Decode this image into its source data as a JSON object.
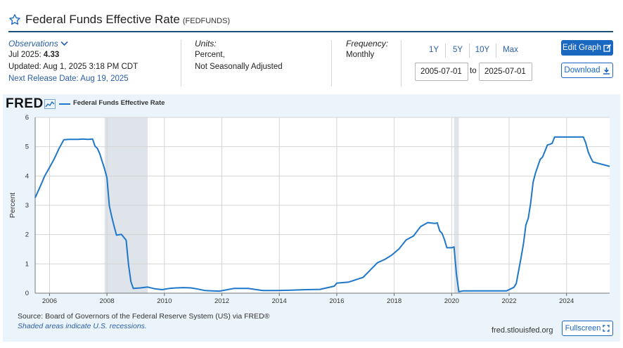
{
  "header": {
    "title": "Federal Funds Effective Rate",
    "series_id": "(FEDFUNDS)"
  },
  "observations": {
    "label": "Observations",
    "period": "Jul 2025:",
    "value": "4.33",
    "updated": "Updated: Aug 1, 2025 3:18 PM CDT",
    "next_release": "Next Release Date: Aug 19, 2025"
  },
  "units": {
    "label": "Units:",
    "line1": "Percent,",
    "line2": "Not Seasonally Adjusted"
  },
  "frequency": {
    "label": "Frequency:",
    "value": "Monthly"
  },
  "range": {
    "buttons": [
      "1Y",
      "5Y",
      "10Y",
      "Max"
    ],
    "start": "2005-07-01",
    "to": "to",
    "end": "2025-07-01"
  },
  "actions": {
    "edit": "Edit Graph",
    "download": "Download",
    "fullscreen": "Fullscreen"
  },
  "logo": "FRED",
  "footer": {
    "source": "Source: Board of Governors of the Federal Reserve System (US) via FRED®",
    "shaded": "Shaded areas indicate U.S. recessions.",
    "site": "fred.stlouisfed.org"
  },
  "colors": {
    "line": "#1f77c9",
    "recession": "#dfe4ea",
    "accent": "#1a67c0"
  },
  "icons": [
    "star-icon",
    "chevron-down-icon",
    "edit-icon",
    "download-icon",
    "fullscreen-icon",
    "fred-chart-icon"
  ],
  "chart_data": {
    "type": "line",
    "title": "",
    "xlabel": "",
    "ylabel": "Percent",
    "ylim": [
      0,
      6
    ],
    "xlim": [
      "2005-07",
      "2025-07"
    ],
    "yticks": [
      0,
      1,
      2,
      3,
      4,
      5,
      6
    ],
    "xticks": [
      "2006",
      "2008",
      "2010",
      "2012",
      "2014",
      "2016",
      "2018",
      "2020",
      "2022",
      "2024"
    ],
    "grid": true,
    "legend_position": "top-left",
    "recessions": [
      {
        "start": "2007-12",
        "end": "2009-06"
      },
      {
        "start": "2020-02",
        "end": "2020-04"
      }
    ],
    "series": [
      {
        "name": "Federal Funds Effective Rate",
        "x": [
          "2005-07",
          "2005-09",
          "2005-11",
          "2006-01",
          "2006-03",
          "2006-05",
          "2006-07",
          "2006-09",
          "2006-11",
          "2007-01",
          "2007-03",
          "2007-05",
          "2007-07",
          "2007-08",
          "2007-09",
          "2007-10",
          "2007-12",
          "2008-01",
          "2008-02",
          "2008-03",
          "2008-04",
          "2008-05",
          "2008-07",
          "2008-09",
          "2008-10",
          "2008-11",
          "2008-12",
          "2009-03",
          "2009-06",
          "2009-09",
          "2009-12",
          "2010-03",
          "2010-06",
          "2010-09",
          "2010-12",
          "2011-03",
          "2011-06",
          "2011-09",
          "2011-12",
          "2012-06",
          "2012-12",
          "2013-06",
          "2013-12",
          "2014-06",
          "2014-12",
          "2015-06",
          "2015-12",
          "2016-01",
          "2016-06",
          "2016-12",
          "2017-03",
          "2017-06",
          "2017-09",
          "2017-12",
          "2018-03",
          "2018-06",
          "2018-09",
          "2018-12",
          "2019-03",
          "2019-06",
          "2019-07",
          "2019-08",
          "2019-09",
          "2019-10",
          "2019-11",
          "2019-12",
          "2020-01",
          "2020-02",
          "2020-03",
          "2020-04",
          "2020-06",
          "2021-06",
          "2021-12",
          "2022-03",
          "2022-04",
          "2022-05",
          "2022-06",
          "2022-07",
          "2022-08",
          "2022-09",
          "2022-10",
          "2022-11",
          "2022-12",
          "2023-02",
          "2023-03",
          "2023-05",
          "2023-06",
          "2023-07",
          "2023-08",
          "2024-08",
          "2024-09",
          "2024-10",
          "2024-11",
          "2024-12",
          "2025-07"
        ],
        "values": [
          3.26,
          3.62,
          4.0,
          4.29,
          4.59,
          4.94,
          5.24,
          5.25,
          5.25,
          5.25,
          5.26,
          5.25,
          5.26,
          5.02,
          4.94,
          4.76,
          4.24,
          3.94,
          2.98,
          2.61,
          2.28,
          1.98,
          2.01,
          1.81,
          0.97,
          0.39,
          0.16,
          0.18,
          0.21,
          0.15,
          0.12,
          0.16,
          0.18,
          0.19,
          0.18,
          0.14,
          0.09,
          0.08,
          0.07,
          0.16,
          0.16,
          0.09,
          0.09,
          0.1,
          0.12,
          0.13,
          0.24,
          0.34,
          0.38,
          0.54,
          0.79,
          1.04,
          1.15,
          1.3,
          1.51,
          1.82,
          1.95,
          2.27,
          2.41,
          2.38,
          2.4,
          2.13,
          2.04,
          1.83,
          1.55,
          1.55,
          1.55,
          1.58,
          0.65,
          0.05,
          0.08,
          0.08,
          0.08,
          0.2,
          0.33,
          0.77,
          1.21,
          1.68,
          2.33,
          2.56,
          3.08,
          3.78,
          4.1,
          4.57,
          4.65,
          5.06,
          5.08,
          5.12,
          5.33,
          5.33,
          5.13,
          4.83,
          4.64,
          4.48,
          4.33
        ]
      }
    ]
  }
}
